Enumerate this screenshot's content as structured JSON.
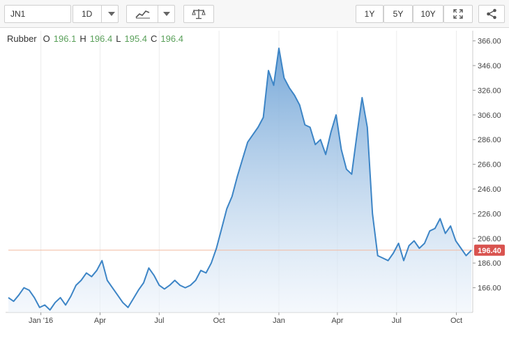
{
  "toolbar": {
    "symbol": "JN1",
    "interval": "1D",
    "range_buttons": [
      "1Y",
      "5Y",
      "10Y"
    ]
  },
  "icons": {
    "chart_type": "line-chart-icon",
    "compare": "scale-icon",
    "fullscreen": "expand-icon",
    "share": "share-icon",
    "dropdown": "caret-down-icon"
  },
  "legend": {
    "name": "Rubber",
    "o_label": "O",
    "o_value": "196.1",
    "h_label": "H",
    "h_value": "196.4",
    "l_label": "L",
    "l_value": "195.4",
    "c_label": "C",
    "c_value": "196.4"
  },
  "colors": {
    "line": "#3d85c6",
    "fill_top": "#6fa3d6",
    "fill_bottom": "#eef4fb",
    "current_price_tag": "#d9534f",
    "current_price_line": "#f4b9a0",
    "legend_values": "#5aa05a"
  },
  "chart_data": {
    "type": "area",
    "series": [
      {
        "name": "Rubber",
        "x": [
          "2015-11-12",
          "2015-11-20",
          "2015-11-28",
          "2015-12-06",
          "2015-12-14",
          "2015-12-22",
          "2015-12-30",
          "2016-01-07",
          "2016-01-15",
          "2016-01-23",
          "2016-01-31",
          "2016-02-08",
          "2016-02-16",
          "2016-02-24",
          "2016-03-03",
          "2016-03-11",
          "2016-03-19",
          "2016-03-27",
          "2016-04-04",
          "2016-04-12",
          "2016-04-20",
          "2016-04-28",
          "2016-05-06",
          "2016-05-14",
          "2016-05-22",
          "2016-05-30",
          "2016-06-07",
          "2016-06-15",
          "2016-06-23",
          "2016-07-01",
          "2016-07-09",
          "2016-07-17",
          "2016-07-25",
          "2016-08-02",
          "2016-08-10",
          "2016-08-18",
          "2016-08-26",
          "2016-09-03",
          "2016-09-11",
          "2016-09-19",
          "2016-09-27",
          "2016-10-05",
          "2016-10-13",
          "2016-10-21",
          "2016-10-29",
          "2016-11-06",
          "2016-11-14",
          "2016-11-22",
          "2016-11-30",
          "2016-12-08",
          "2016-12-16",
          "2016-12-24",
          "2017-01-01",
          "2017-01-09",
          "2017-01-17",
          "2017-01-25",
          "2017-02-02",
          "2017-02-10",
          "2017-02-18",
          "2017-02-26",
          "2017-03-06",
          "2017-03-14",
          "2017-03-22",
          "2017-03-30",
          "2017-04-07",
          "2017-04-15",
          "2017-04-23",
          "2017-05-01",
          "2017-05-09",
          "2017-05-17",
          "2017-05-25",
          "2017-06-02",
          "2017-06-10",
          "2017-06-18",
          "2017-06-26",
          "2017-07-04",
          "2017-07-12",
          "2017-07-20",
          "2017-07-28",
          "2017-08-05",
          "2017-08-13",
          "2017-08-21",
          "2017-08-29",
          "2017-09-06",
          "2017-09-14",
          "2017-09-22",
          "2017-09-30",
          "2017-10-08",
          "2017-10-16",
          "2017-10-24"
        ],
        "y": [
          158,
          155,
          160,
          166,
          164,
          158,
          150,
          152,
          148,
          154,
          158,
          152,
          159,
          168,
          172,
          178,
          175,
          180,
          188,
          172,
          166,
          160,
          154,
          150,
          157,
          164,
          170,
          182,
          176,
          168,
          165,
          168,
          172,
          168,
          166,
          168,
          172,
          180,
          178,
          186,
          198,
          214,
          230,
          240,
          256,
          270,
          284,
          290,
          296,
          304,
          342,
          330,
          360,
          336,
          328,
          322,
          314,
          298,
          296,
          282,
          286,
          274,
          292,
          306,
          278,
          262,
          258,
          290,
          320,
          296,
          226,
          192,
          190,
          188,
          194,
          202,
          188,
          200,
          204,
          198,
          202,
          212,
          214,
          222,
          210,
          216,
          204,
          198,
          192,
          196.4
        ]
      }
    ],
    "y_ticks": [
      "366.00",
      "346.00",
      "326.00",
      "306.00",
      "286.00",
      "266.00",
      "246.00",
      "226.00",
      "206.00",
      "186.00",
      "166.00"
    ],
    "x_tick_labels": [
      "Jan '16",
      "Apr",
      "Jul",
      "Oct",
      "Jan",
      "Apr",
      "Jul",
      "Oct"
    ],
    "ylim": [
      146,
      372
    ],
    "current_value": "196.40",
    "grid": "vertical",
    "legend_placement": "top-left"
  }
}
